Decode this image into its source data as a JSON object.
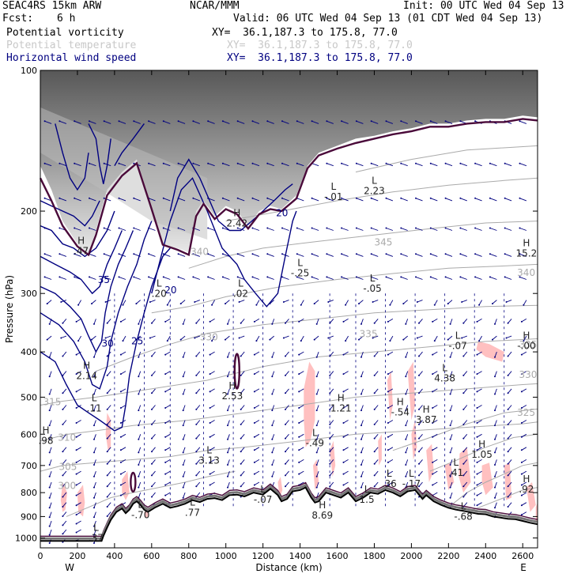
{
  "header": {
    "model": "SEAC4RS 15km ARW",
    "org": "NCAR/MMM",
    "init": "Init: 00 UTC Wed 04 Sep 13",
    "fcst_label": "Fcst:",
    "fcst_value": "6 h",
    "valid": "Valid: 06 UTC Wed 04 Sep 13 (01 CDT Wed 04 Sep 13)"
  },
  "fields": [
    {
      "name": "Potential vorticity",
      "xy": "XY=  36.1,187.3 to 175.8, 77.0",
      "color": "#000000"
    },
    {
      "name": "Potential temperature",
      "xy": "XY=  36.1,187.3 to 175.8, 77.0",
      "color": "#c8c8c8"
    },
    {
      "name": "Horizontal wind speed",
      "xy": "XY=  36.1,187.3 to 175.8, 77.0",
      "color": "#000080"
    }
  ],
  "chart_data": {
    "type": "cross-section",
    "xlabel": "Distance (km)",
    "ylabel": "Pressure (hPa)",
    "xlim": [
      0,
      2680
    ],
    "ylim": [
      1050,
      100
    ],
    "xticks": [
      "0",
      "200",
      "400",
      "600",
      "800",
      "1000",
      "1200",
      "1400",
      "1600",
      "1800",
      "2000",
      "2200",
      "2400",
      "2600"
    ],
    "yticks": [
      "100",
      "200",
      "300",
      "400",
      "500",
      "600",
      "700",
      "800",
      "900",
      "1000"
    ],
    "endpoints": {
      "left": "W",
      "right": "E"
    },
    "colors": {
      "theta": "#aaaaaa",
      "wind": "#000080",
      "pv": "#4a0a3a",
      "pv_shade": "#ffc0c0",
      "terrain": "#000000",
      "wind_vectors": "#000080"
    },
    "theta_labels": [
      {
        "text": "300",
        "x": 95,
        "p": 785
      },
      {
        "text": "305",
        "x": 100,
        "p": 715
      },
      {
        "text": "310",
        "x": 95,
        "p": 620
      },
      {
        "text": "315",
        "x": 15,
        "p": 520
      },
      {
        "text": "330",
        "x": 860,
        "p": 378
      },
      {
        "text": "335",
        "x": 1720,
        "p": 372
      },
      {
        "text": "335",
        "x": 2580,
        "p": 392
      },
      {
        "text": "340",
        "x": 810,
        "p": 248
      },
      {
        "text": "340",
        "x": 2570,
        "p": 275
      },
      {
        "text": "330",
        "x": 2580,
        "p": 455
      },
      {
        "text": "325",
        "x": 2570,
        "p": 548
      },
      {
        "text": "345",
        "x": 1800,
        "p": 237
      }
    ],
    "wind_labels": [
      {
        "text": "35",
        "x": 310,
        "p": 285
      },
      {
        "text": "30",
        "x": 330,
        "p": 390
      },
      {
        "text": "25",
        "x": 490,
        "p": 385
      },
      {
        "text": "20",
        "x": 1270,
        "p": 205
      },
      {
        "text": "20",
        "x": 670,
        "p": 300
      }
    ],
    "hl_markers": [
      {
        "letter": "L",
        "value": ".37",
        "x": 300,
        "p": 965
      },
      {
        "letter": "L",
        "value": "-.70",
        "x": 540,
        "p": 862
      },
      {
        "letter": "L",
        "value": ".11",
        "x": 290,
        "p": 510
      },
      {
        "letter": "H",
        "value": "2.14",
        "x": 250,
        "p": 435
      },
      {
        "letter": "H",
        "value": ".98",
        "x": 30,
        "p": 598
      },
      {
        "letter": "H",
        "value": "2.53",
        "x": 1035,
        "p": 480
      },
      {
        "letter": "L",
        "value": "3.13",
        "x": 910,
        "p": 660
      },
      {
        "letter": "L",
        "value": ".02",
        "x": 1080,
        "p": 290
      },
      {
        "letter": "L",
        "value": "-.25",
        "x": 1400,
        "p": 262
      },
      {
        "letter": "L",
        "value": "-.01",
        "x": 1580,
        "p": 180
      },
      {
        "letter": "L",
        "value": "2.23",
        "x": 1800,
        "p": 175
      },
      {
        "letter": "L",
        "value": "-.05",
        "x": 1790,
        "p": 283
      },
      {
        "letter": "L",
        "value": "-.07",
        "x": 2250,
        "p": 375
      },
      {
        "letter": "H",
        "value": "-.00",
        "x": 2620,
        "p": 375
      },
      {
        "letter": "H",
        "value": "15.2",
        "x": 2620,
        "p": 238
      },
      {
        "letter": "L",
        "value": "4.38",
        "x": 2180,
        "p": 440
      },
      {
        "letter": "H",
        "value": "1.21",
        "x": 1620,
        "p": 510
      },
      {
        "letter": "H",
        "value": "3.87",
        "x": 2080,
        "p": 540
      },
      {
        "letter": "H",
        "value": "-.54",
        "x": 1940,
        "p": 520
      },
      {
        "letter": "L",
        "value": "-.49",
        "x": 1480,
        "p": 605
      },
      {
        "letter": "H",
        "value": "1.05",
        "x": 2380,
        "p": 640
      },
      {
        "letter": "L",
        "value": ".41",
        "x": 2240,
        "p": 700
      },
      {
        "letter": "L",
        "value": ".36",
        "x": 1880,
        "p": 740
      },
      {
        "letter": "L",
        "value": "-.17",
        "x": 2000,
        "p": 740
      },
      {
        "letter": "H",
        "value": ".92",
        "x": 2620,
        "p": 760
      },
      {
        "letter": "L",
        "value": "-.07",
        "x": 1200,
        "p": 800
      },
      {
        "letter": "L",
        "value": "1.5",
        "x": 1760,
        "p": 800
      },
      {
        "letter": "H",
        "value": "8.69",
        "x": 1520,
        "p": 865
      },
      {
        "letter": "L",
        "value": "-.68",
        "x": 2280,
        "p": 870
      },
      {
        "letter": "L",
        "value": ".20",
        "x": 640,
        "p": 290
      },
      {
        "letter": "H",
        "value": "2.42",
        "x": 1060,
        "p": 205
      },
      {
        "letter": "H",
        "value": ".47",
        "x": 220,
        "p": 235
      },
      {
        "letter": "L",
        "value": ".77",
        "x": 820,
        "p": 852
      }
    ]
  }
}
